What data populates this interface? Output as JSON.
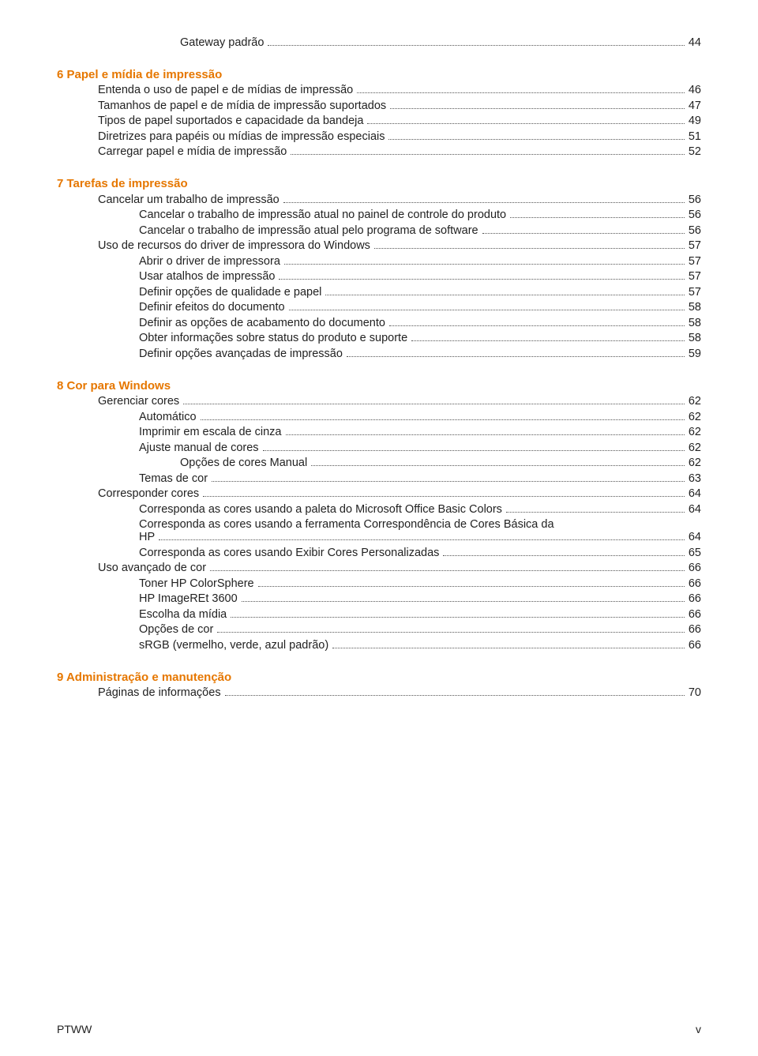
{
  "colors": {
    "chapter": "#e67700",
    "text": "#222222",
    "bg": "#ffffff",
    "dots": "#555555"
  },
  "font_size_pt": 11,
  "pre_entry": {
    "text": "Gateway padrão",
    "page": "44",
    "indent": 4
  },
  "sections": [
    {
      "heading": "6  Papel e mídia de impressão",
      "entries": [
        {
          "text": "Entenda o uso de papel e de mídias de impressão",
          "page": "46",
          "indent": 2
        },
        {
          "text": "Tamanhos de papel e de mídia de impressão suportados",
          "page": "47",
          "indent": 2
        },
        {
          "text": "Tipos de papel suportados e capacidade da bandeja",
          "page": "49",
          "indent": 2
        },
        {
          "text": "Diretrizes para papéis ou mídias de impressão especiais",
          "page": "51",
          "indent": 2
        },
        {
          "text": "Carregar papel e mídia de impressão",
          "page": "52",
          "indent": 2
        }
      ]
    },
    {
      "heading": "7  Tarefas de impressão",
      "entries": [
        {
          "text": "Cancelar um trabalho de impressão",
          "page": "56",
          "indent": 2
        },
        {
          "text": "Cancelar o trabalho de impressão atual no painel de controle do produto",
          "page": "56",
          "indent": 3
        },
        {
          "text": "Cancelar o trabalho de impressão atual pelo programa de software",
          "page": "56",
          "indent": 3
        },
        {
          "text": "Uso de recursos do driver de impressora do Windows",
          "page": "57",
          "indent": 2
        },
        {
          "text": "Abrir o driver de impressora",
          "page": "57",
          "indent": 3
        },
        {
          "text": "Usar atalhos de impressão",
          "page": "57",
          "indent": 3
        },
        {
          "text": "Definir opções de qualidade e papel",
          "page": "57",
          "indent": 3
        },
        {
          "text": "Definir efeitos do documento",
          "page": "58",
          "indent": 3
        },
        {
          "text": "Definir as opções de acabamento do documento",
          "page": "58",
          "indent": 3
        },
        {
          "text": "Obter informações sobre status do produto e suporte",
          "page": "58",
          "indent": 3
        },
        {
          "text": "Definir opções avançadas de impressão",
          "page": "59",
          "indent": 3
        }
      ]
    },
    {
      "heading": "8  Cor para Windows",
      "entries": [
        {
          "text": "Gerenciar cores",
          "page": "62",
          "indent": 2
        },
        {
          "text": "Automático",
          "page": "62",
          "indent": 3
        },
        {
          "text": "Imprimir em escala de cinza",
          "page": "62",
          "indent": 3
        },
        {
          "text": "Ajuste manual de cores",
          "page": "62",
          "indent": 3
        },
        {
          "text": "Opções de cores Manual",
          "page": "62",
          "indent": 4
        },
        {
          "text": "Temas de cor",
          "page": "63",
          "indent": 3
        },
        {
          "text": "Corresponder cores",
          "page": "64",
          "indent": 2
        },
        {
          "text": "Corresponda as cores usando a paleta do Microsoft Office Basic Colors",
          "page": "64",
          "indent": 3
        },
        {
          "text": "Corresponda as cores usando a ferramenta Correspondência de Cores Básica da",
          "text2": "HP",
          "page": "64",
          "indent": 3,
          "wrap": true
        },
        {
          "text": "Corresponda as cores usando Exibir Cores Personalizadas",
          "page": "65",
          "indent": 3
        },
        {
          "text": "Uso avançado de cor",
          "page": "66",
          "indent": 2
        },
        {
          "text": "Toner HP ColorSphere",
          "page": "66",
          "indent": 3
        },
        {
          "text": "HP ImageREt 3600",
          "page": "66",
          "indent": 3
        },
        {
          "text": "Escolha da mídia",
          "page": "66",
          "indent": 3
        },
        {
          "text": "Opções de cor",
          "page": "66",
          "indent": 3
        },
        {
          "text": "sRGB (vermelho, verde, azul padrão)",
          "page": "66",
          "indent": 3
        }
      ]
    },
    {
      "heading": "9  Administração e manutenção",
      "entries": [
        {
          "text": "Páginas de informações",
          "page": "70",
          "indent": 2
        }
      ]
    }
  ],
  "footer": {
    "left": "PTWW",
    "right": "v"
  }
}
